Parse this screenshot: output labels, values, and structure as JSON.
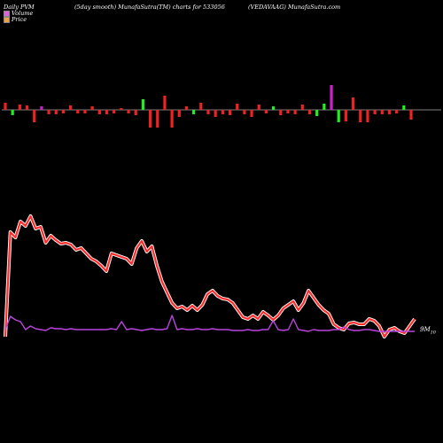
{
  "header": {
    "left": "Daily PVM",
    "center": "(5day smooth) MunafaSutra(TM) charts for 533056",
    "right": "(VEDAVAAG) MunafaSutra.com"
  },
  "legend": [
    {
      "label": "Volume",
      "color": "#e060e0"
    },
    {
      "label": "Price",
      "color": "#f0a040"
    }
  ],
  "end_label": "9M",
  "end_sub": "10",
  "colors": {
    "up": "#22ee22",
    "down": "#ee2222",
    "neutral": "#cc22cc",
    "price": "#ff2a2a",
    "volume": "#bb44dd",
    "baseline": "#ffffff"
  },
  "chart_data": {
    "type": "line",
    "volume_bars": [
      1,
      -1,
      1,
      1,
      -1,
      1,
      -1,
      -1,
      -1,
      1,
      -1,
      -1,
      1,
      -1,
      -1,
      -1,
      1,
      -1,
      -1,
      1,
      -1,
      -1,
      1,
      -1,
      -1,
      1,
      -1,
      1,
      -1,
      -1,
      -1,
      -1,
      1,
      -1,
      -1,
      1,
      -1,
      1,
      -1,
      -1,
      -1,
      1,
      -1,
      -1,
      1,
      1,
      -1,
      -1,
      1,
      -1,
      -1,
      -1,
      -1,
      -1,
      -1,
      1,
      -1
    ],
    "bar_heights": [
      8,
      6,
      6,
      5,
      14,
      4,
      5,
      5,
      4,
      5,
      4,
      4,
      4,
      5,
      5,
      4,
      2,
      4,
      6,
      12,
      20,
      20,
      16,
      20,
      8,
      4,
      5,
      8,
      5,
      8,
      5,
      6,
      7,
      5,
      8,
      6,
      4,
      4,
      6,
      4,
      5,
      6,
      5,
      7,
      7,
      28,
      14,
      13,
      14,
      14,
      14,
      5,
      5,
      5,
      4,
      5,
      11
    ],
    "bar_colors": [
      "down",
      "up",
      "down",
      "down",
      "down",
      "neutral",
      "down",
      "down",
      "down",
      "down",
      "down",
      "down",
      "down",
      "down",
      "down",
      "down",
      "down",
      "down",
      "down",
      "up",
      "down",
      "down",
      "down",
      "down",
      "down",
      "down",
      "up",
      "down",
      "down",
      "down",
      "down",
      "down",
      "down",
      "down",
      "down",
      "down",
      "down",
      "up",
      "down",
      "down",
      "down",
      "down",
      "down",
      "up",
      "up",
      "neutral",
      "up",
      "down",
      "down",
      "down",
      "down",
      "down",
      "down",
      "down",
      "down",
      "up",
      "down"
    ],
    "price": [
      380,
      262,
      268,
      250,
      255,
      244,
      258,
      256,
      274,
      266,
      271,
      275,
      274,
      276,
      282,
      280,
      286,
      292,
      295,
      300,
      306,
      286,
      288,
      290,
      292,
      298,
      280,
      272,
      284,
      278,
      300,
      318,
      330,
      342,
      348,
      346,
      350,
      345,
      350,
      344,
      332,
      328,
      334,
      337,
      338,
      342,
      350,
      358,
      360,
      356,
      360,
      352,
      356,
      361,
      356,
      348,
      344,
      340,
      350,
      342,
      328,
      336,
      344,
      350,
      354,
      366,
      370,
      372,
      365,
      364,
      366,
      366,
      360,
      362,
      368,
      380,
      372,
      370,
      374,
      376,
      368,
      360
    ],
    "volume": [
      372,
      357,
      361,
      363,
      372,
      368,
      371,
      372,
      373,
      370,
      371,
      371,
      372,
      371,
      372,
      372,
      372,
      372,
      372,
      372,
      372,
      371,
      372,
      363,
      372,
      371,
      372,
      373,
      372,
      371,
      372,
      372,
      371,
      356,
      372,
      371,
      372,
      372,
      371,
      372,
      372,
      371,
      372,
      372,
      372,
      373,
      373,
      373,
      372,
      373,
      373,
      372,
      372,
      362,
      372,
      373,
      372,
      360,
      372,
      373,
      374,
      372,
      373,
      373,
      373,
      372,
      372,
      369,
      372,
      373,
      373,
      372,
      372,
      373,
      374,
      374,
      374,
      374,
      374,
      374,
      374,
      374
    ]
  }
}
